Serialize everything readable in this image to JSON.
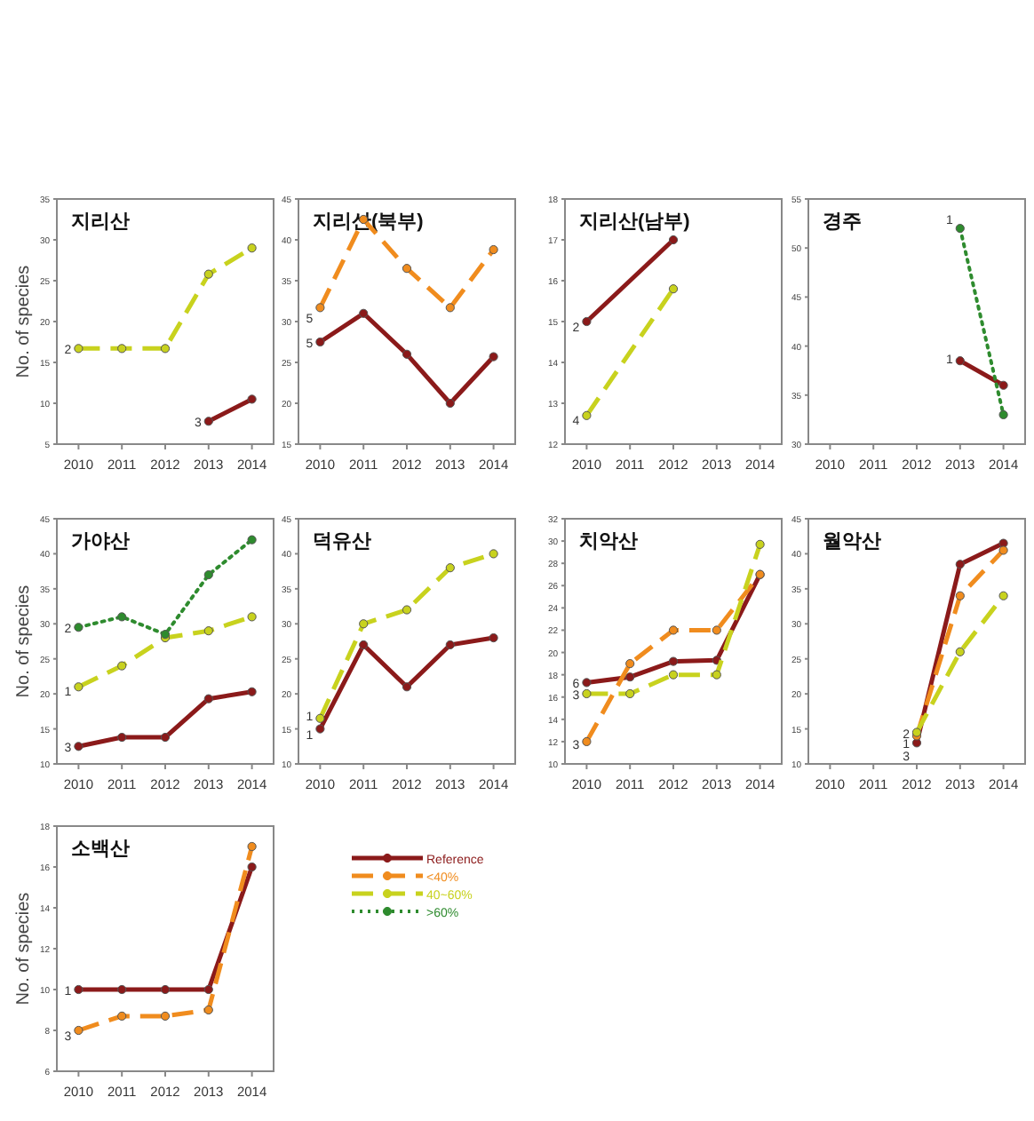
{
  "chart_data": [
    {
      "type": "line",
      "title": "지리산",
      "ylabel": "No. of species",
      "x": [
        2010,
        2011,
        2012,
        2013,
        2014
      ],
      "xlim": [
        2009.5,
        2014.5
      ],
      "xticks": [
        2010,
        2011,
        2012,
        2013,
        2014
      ],
      "ylim": [
        5,
        35
      ],
      "yticks": [
        5,
        10,
        15,
        20,
        25,
        30,
        35
      ],
      "marker": "circle",
      "grid": false,
      "legend": false,
      "series": [
        {
          "color": "#8b1a1a",
          "line_style": "solid",
          "values": [
            null,
            null,
            null,
            7.8,
            10.5
          ]
        },
        {
          "color": "#c8d21e",
          "line_style": "dashed",
          "values": [
            16.7,
            16.7,
            16.7,
            25.8,
            29
          ]
        }
      ],
      "annotations": [
        {
          "text": "2",
          "x": 2010,
          "y": 16.7
        },
        {
          "text": "3",
          "x": 2013,
          "y": 7.8
        }
      ]
    },
    {
      "type": "line",
      "title": "지리산(북부)",
      "x": [
        2010,
        2011,
        2012,
        2013,
        2014
      ],
      "xlim": [
        2009.5,
        2014.5
      ],
      "xticks": [
        2010,
        2011,
        2012,
        2013,
        2014
      ],
      "ylim": [
        15,
        45
      ],
      "yticks": [
        15,
        20,
        25,
        30,
        35,
        40,
        45
      ],
      "marker": "circle",
      "grid": false,
      "legend": false,
      "series": [
        {
          "color": "#8b1a1a",
          "line_style": "solid",
          "values": [
            27.5,
            31,
            26,
            20,
            25.7
          ]
        },
        {
          "color": "#f08c1e",
          "line_style": "dashed",
          "values": [
            31.7,
            42.5,
            36.5,
            31.7,
            38.8
          ]
        }
      ],
      "annotations": [
        {
          "text": "5",
          "x": 2010,
          "y": 30.5
        },
        {
          "text": "5",
          "x": 2010,
          "y": 27.5
        }
      ]
    },
    {
      "type": "line",
      "title": "지리산(남부)",
      "xlim": [
        2009.5,
        2014.5
      ],
      "xticks": [
        2010,
        2011,
        2012,
        2013,
        2014
      ],
      "ylim": [
        12,
        18
      ],
      "yticks": [
        12,
        13,
        14,
        15,
        16,
        17,
        18
      ],
      "marker": "circle",
      "grid": false,
      "legend": false,
      "series": [
        {
          "color": "#8b1a1a",
          "line_style": "solid",
          "x": [
            2010,
            2012
          ],
          "values": [
            15,
            17
          ]
        },
        {
          "color": "#c8d21e",
          "line_style": "dashed",
          "x": [
            2010,
            2012
          ],
          "values": [
            12.7,
            15.8
          ]
        }
      ],
      "annotations": [
        {
          "text": "2",
          "x": 2010,
          "y": 14.9
        },
        {
          "text": "4",
          "x": 2010,
          "y": 12.6
        }
      ]
    },
    {
      "type": "line",
      "title": "경주",
      "xlim": [
        2009.5,
        2014.5
      ],
      "xticks": [
        2010,
        2011,
        2012,
        2013,
        2014
      ],
      "ylim": [
        30,
        55
      ],
      "yticks": [
        30,
        35,
        40,
        45,
        50,
        55
      ],
      "marker": "circle",
      "grid": false,
      "legend": false,
      "series": [
        {
          "color": "#8b1a1a",
          "line_style": "solid",
          "x": [
            2013,
            2014
          ],
          "values": [
            38.5,
            36
          ]
        },
        {
          "color": "#2e8b2e",
          "line_style": "dotted",
          "x": [
            2013,
            2014
          ],
          "values": [
            52,
            33
          ]
        }
      ],
      "annotations": [
        {
          "text": "1",
          "x": 2013,
          "y": 53
        },
        {
          "text": "1",
          "x": 2013,
          "y": 38.8
        }
      ]
    },
    {
      "type": "line",
      "title": "가야산",
      "ylabel": "No. of species",
      "x": [
        2010,
        2011,
        2012,
        2013,
        2014
      ],
      "xlim": [
        2009.5,
        2014.5
      ],
      "xticks": [
        2010,
        2011,
        2012,
        2013,
        2014
      ],
      "ylim": [
        10,
        45
      ],
      "yticks": [
        10,
        15,
        20,
        25,
        30,
        35,
        40,
        45
      ],
      "marker": "circle",
      "grid": false,
      "legend": false,
      "series": [
        {
          "color": "#8b1a1a",
          "line_style": "solid",
          "values": [
            12.5,
            13.8,
            13.8,
            19.3,
            20.3
          ]
        },
        {
          "color": "#c8d21e",
          "line_style": "dashed",
          "values": [
            21,
            24,
            28,
            29,
            31
          ]
        },
        {
          "color": "#2e8b2e",
          "line_style": "dotted",
          "values": [
            29.5,
            31,
            28.5,
            37,
            42
          ]
        }
      ],
      "annotations": [
        {
          "text": "3",
          "x": 2010,
          "y": 12.5
        },
        {
          "text": "1",
          "x": 2010,
          "y": 20.5
        },
        {
          "text": "2",
          "x": 2010,
          "y": 29.5
        }
      ]
    },
    {
      "type": "line",
      "title": "덕유산",
      "x": [
        2010,
        2011,
        2012,
        2013,
        2014
      ],
      "xlim": [
        2009.5,
        2014.5
      ],
      "xticks": [
        2010,
        2011,
        2012,
        2013,
        2014
      ],
      "ylim": [
        10,
        45
      ],
      "yticks": [
        10,
        15,
        20,
        25,
        30,
        35,
        40,
        45
      ],
      "marker": "circle",
      "grid": false,
      "legend": false,
      "series": [
        {
          "color": "#8b1a1a",
          "line_style": "solid",
          "values": [
            15,
            27,
            21,
            27,
            28
          ]
        },
        {
          "color": "#c8d21e",
          "line_style": "dashed",
          "values": [
            16.5,
            30,
            32,
            38,
            40
          ]
        }
      ],
      "annotations": [
        {
          "text": "1",
          "x": 2010,
          "y": 17
        },
        {
          "text": "1",
          "x": 2010,
          "y": 14.3
        }
      ]
    },
    {
      "type": "line",
      "title": "치악산",
      "x": [
        2010,
        2011,
        2012,
        2013,
        2014
      ],
      "xlim": [
        2009.5,
        2014.5
      ],
      "xticks": [
        2010,
        2011,
        2012,
        2013,
        2014
      ],
      "ylim": [
        10,
        32
      ],
      "yticks": [
        10,
        12,
        14,
        16,
        18,
        20,
        22,
        24,
        26,
        28,
        30,
        32
      ],
      "marker": "circle",
      "grid": false,
      "legend": false,
      "series": [
        {
          "color": "#8b1a1a",
          "line_style": "solid",
          "values": [
            17.3,
            17.8,
            19.2,
            19.3,
            27
          ]
        },
        {
          "color": "#f08c1e",
          "line_style": "dashed",
          "values": [
            12,
            19,
            22,
            22,
            27
          ]
        },
        {
          "color": "#c8d21e",
          "line_style": "dashed",
          "values": [
            16.3,
            16.3,
            18,
            18,
            29.7
          ]
        }
      ],
      "annotations": [
        {
          "text": "6",
          "x": 2010,
          "y": 17.3
        },
        {
          "text": "3",
          "x": 2010,
          "y": 16.3
        },
        {
          "text": "3",
          "x": 2010,
          "y": 11.8
        }
      ]
    },
    {
      "type": "line",
      "title": "월악산",
      "x": [
        2012,
        2013,
        2014
      ],
      "xlim": [
        2009.5,
        2014.5
      ],
      "xticks": [
        2010,
        2011,
        2012,
        2013,
        2014
      ],
      "ylim": [
        10,
        45
      ],
      "yticks": [
        10,
        15,
        20,
        25,
        30,
        35,
        40,
        45
      ],
      "marker": "circle",
      "grid": false,
      "legend": false,
      "series": [
        {
          "color": "#8b1a1a",
          "line_style": "solid",
          "values": [
            13,
            38.5,
            41.5
          ]
        },
        {
          "color": "#f08c1e",
          "line_style": "dashed",
          "values": [
            14,
            34,
            40.5
          ]
        },
        {
          "color": "#c8d21e",
          "line_style": "dashed",
          "values": [
            14.5,
            26,
            34
          ]
        }
      ],
      "annotations": [
        {
          "text": "2",
          "x": 2012,
          "y": 14.5
        },
        {
          "text": "1",
          "x": 2012,
          "y": 13
        },
        {
          "text": "3",
          "x": 2012,
          "y": 11.3
        }
      ]
    },
    {
      "type": "line",
      "title": "소백산",
      "ylabel": "No. of species",
      "x": [
        2010,
        2011,
        2012,
        2013,
        2014
      ],
      "xlim": [
        2009.5,
        2014.5
      ],
      "xticks": [
        2010,
        2011,
        2012,
        2013,
        2014
      ],
      "ylim": [
        6,
        18
      ],
      "yticks": [
        6,
        8,
        10,
        12,
        14,
        16,
        18
      ],
      "marker": "circle",
      "grid": false,
      "legend": "right",
      "series": [
        {
          "name": "Reference",
          "color": "#8b1a1a",
          "line_style": "solid",
          "values": [
            10,
            10,
            10,
            10,
            16
          ]
        },
        {
          "name": "<40%",
          "color": "#f08c1e",
          "line_style": "dashed",
          "values": [
            8,
            8.7,
            8.7,
            9,
            17
          ]
        },
        {
          "name": "40~60%",
          "color": "#c8d21e",
          "line_style": "dashed",
          "values": [
            null,
            null,
            null,
            null,
            null
          ]
        },
        {
          "name": ">60%",
          "color": "#2e8b2e",
          "line_style": "dotted",
          "values": [
            null,
            null,
            null,
            null,
            null
          ]
        }
      ],
      "annotations": [
        {
          "text": "1",
          "x": 2010,
          "y": 10
        },
        {
          "text": "3",
          "x": 2010,
          "y": 7.8
        }
      ]
    }
  ]
}
